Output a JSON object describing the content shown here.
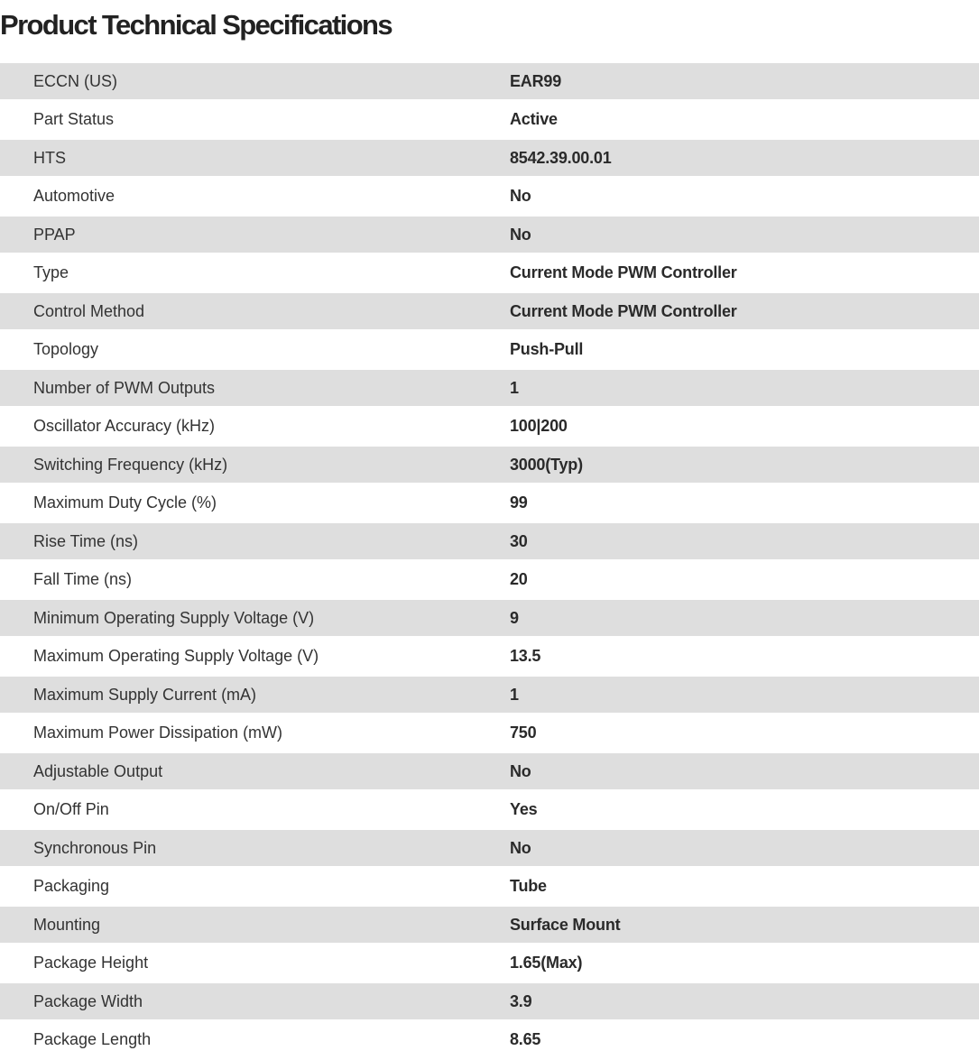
{
  "title": "Product Technical Specifications",
  "specs": [
    {
      "label": "ECCN (US)",
      "value": "EAR99"
    },
    {
      "label": "Part Status",
      "value": "Active"
    },
    {
      "label": "HTS",
      "value": "8542.39.00.01"
    },
    {
      "label": "Automotive",
      "value": "No"
    },
    {
      "label": "PPAP",
      "value": "No"
    },
    {
      "label": "Type",
      "value": "Current Mode PWM Controller"
    },
    {
      "label": "Control Method",
      "value": "Current Mode PWM Controller"
    },
    {
      "label": "Topology",
      "value": "Push-Pull"
    },
    {
      "label": "Number of PWM Outputs",
      "value": "1"
    },
    {
      "label": "Oscillator Accuracy (kHz)",
      "value": "100|200"
    },
    {
      "label": "Switching Frequency (kHz)",
      "value": "3000(Typ)"
    },
    {
      "label": "Maximum Duty Cycle (%)",
      "value": "99"
    },
    {
      "label": "Rise Time (ns)",
      "value": "30"
    },
    {
      "label": "Fall Time (ns)",
      "value": "20"
    },
    {
      "label": "Minimum Operating Supply Voltage (V)",
      "value": "9"
    },
    {
      "label": "Maximum Operating Supply Voltage (V)",
      "value": "13.5"
    },
    {
      "label": "Maximum Supply Current (mA)",
      "value": "1"
    },
    {
      "label": "Maximum Power Dissipation (mW)",
      "value": "750"
    },
    {
      "label": "Adjustable Output",
      "value": "No"
    },
    {
      "label": "On/Off Pin",
      "value": "Yes"
    },
    {
      "label": "Synchronous Pin",
      "value": "No"
    },
    {
      "label": "Packaging",
      "value": "Tube"
    },
    {
      "label": "Mounting",
      "value": "Surface Mount"
    },
    {
      "label": "Package Height",
      "value": "1.65(Max)"
    },
    {
      "label": "Package Width",
      "value": "3.9"
    },
    {
      "label": "Package Length",
      "value": "8.65"
    }
  ]
}
